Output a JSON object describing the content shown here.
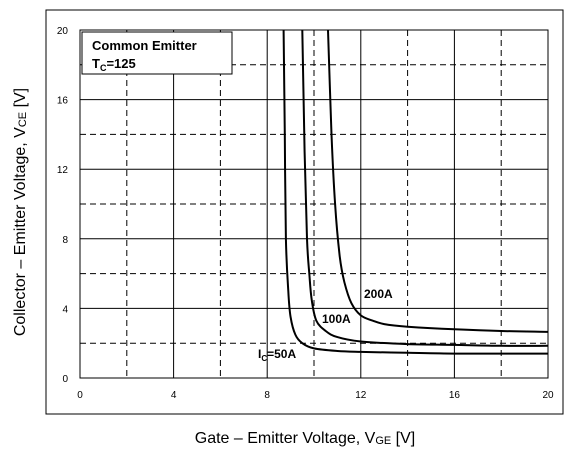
{
  "chart_data": {
    "type": "line",
    "title": "",
    "legend_box": {
      "line1": "Common Emitter",
      "line2_main": "T",
      "line2_sub": "C",
      "line2_rest": "=125"
    },
    "xlabel": {
      "main": "Gate – Emitter Voltage, V",
      "sub": "GE",
      "rest": " [V]"
    },
    "ylabel": {
      "main": "Collector – Emitter Voltage, V",
      "sub": "CE",
      "rest": " [V]"
    },
    "xlim": [
      0,
      20
    ],
    "ylim": [
      0,
      20
    ],
    "x_ticks": [
      0,
      4,
      8,
      12,
      16,
      20
    ],
    "y_ticks": [
      0,
      4,
      8,
      12,
      16,
      20
    ],
    "x_ticks_labels": [
      "0",
      "4",
      "8",
      "12",
      "16",
      "20"
    ],
    "y_ticks_labels": [
      "0",
      "4",
      "8",
      "12",
      "16",
      "20"
    ],
    "grid": {
      "solid_major": true,
      "dashed_minor": true,
      "minor_step": 2
    },
    "line_color": "#000000",
    "series": [
      {
        "name": "Ic=50A",
        "label_main": "I",
        "label_sub": "C",
        "label_rest": "=50A",
        "x": [
          8.7,
          8.75,
          8.8,
          8.9,
          9.0,
          9.2,
          9.5,
          10.0,
          11.0,
          12.0,
          14.0,
          16.0,
          18.0,
          20.0
        ],
        "y": [
          20,
          14,
          8,
          5,
          3.5,
          2.5,
          2.0,
          1.7,
          1.55,
          1.5,
          1.45,
          1.4,
          1.4,
          1.4
        ]
      },
      {
        "name": "100A",
        "label_main": "100A",
        "x": [
          9.5,
          9.6,
          9.7,
          9.8,
          9.9,
          10.1,
          10.5,
          11.0,
          12.0,
          14.0,
          16.0,
          18.0,
          20.0
        ],
        "y": [
          20,
          13,
          8,
          6,
          4.5,
          3.3,
          2.7,
          2.35,
          2.1,
          1.95,
          1.9,
          1.85,
          1.85
        ]
      },
      {
        "name": "200A",
        "label_main": "200A",
        "x": [
          10.6,
          10.75,
          10.9,
          11.1,
          11.3,
          11.6,
          12.0,
          12.5,
          13.0,
          14.0,
          16.0,
          18.0,
          20.0
        ],
        "y": [
          20,
          14,
          10,
          7,
          5.5,
          4.3,
          3.6,
          3.3,
          3.1,
          2.95,
          2.8,
          2.7,
          2.65
        ]
      }
    ]
  }
}
